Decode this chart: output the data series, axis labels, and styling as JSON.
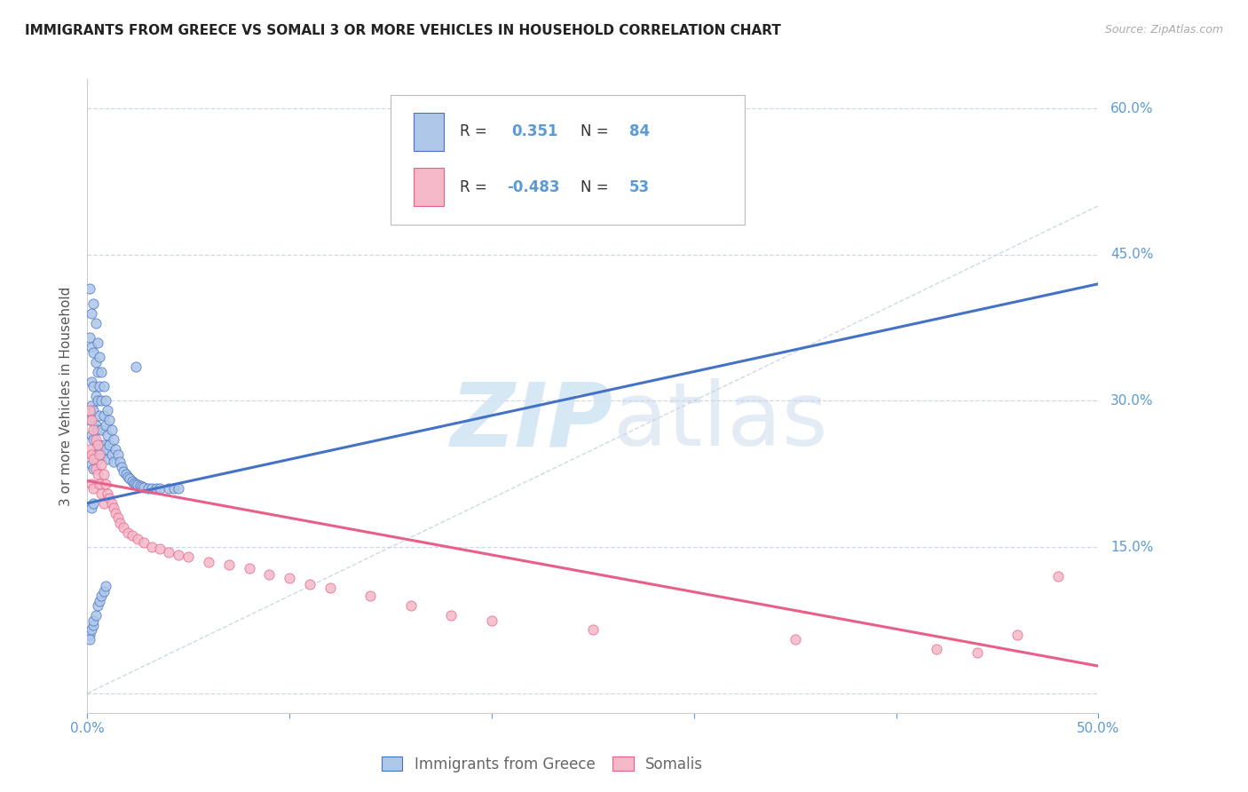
{
  "title": "IMMIGRANTS FROM GREECE VS SOMALI 3 OR MORE VEHICLES IN HOUSEHOLD CORRELATION CHART",
  "source": "Source: ZipAtlas.com",
  "ylabel": "3 or more Vehicles in Household",
  "xmin": 0.0,
  "xmax": 0.5,
  "ymin": -0.02,
  "ymax": 0.63,
  "color_greece": "#aec6e8",
  "color_somali": "#f4b8c8",
  "color_greece_line": "#4472c4",
  "color_somali_line": "#e8608a",
  "color_diag_line": "#c0d0e0",
  "background_color": "#ffffff",
  "grid_color": "#d0d8e8",
  "axis_color": "#5b9bd5",
  "greece_line_y_start": 0.195,
  "greece_line_y_end": 0.42,
  "somali_line_y_start": 0.218,
  "somali_line_y_end": 0.028,
  "greece_x": [
    0.001,
    0.001,
    0.001,
    0.002,
    0.002,
    0.002,
    0.002,
    0.002,
    0.002,
    0.002,
    0.003,
    0.003,
    0.003,
    0.003,
    0.003,
    0.003,
    0.003,
    0.004,
    0.004,
    0.004,
    0.004,
    0.004,
    0.005,
    0.005,
    0.005,
    0.005,
    0.005,
    0.006,
    0.006,
    0.006,
    0.006,
    0.007,
    0.007,
    0.007,
    0.007,
    0.008,
    0.008,
    0.008,
    0.009,
    0.009,
    0.009,
    0.01,
    0.01,
    0.01,
    0.011,
    0.011,
    0.012,
    0.012,
    0.013,
    0.013,
    0.014,
    0.015,
    0.016,
    0.017,
    0.018,
    0.019,
    0.02,
    0.021,
    0.022,
    0.023,
    0.024,
    0.025,
    0.026,
    0.027,
    0.028,
    0.03,
    0.032,
    0.034,
    0.036,
    0.04,
    0.043,
    0.045,
    0.001,
    0.001,
    0.002,
    0.003,
    0.003,
    0.004,
    0.005,
    0.006,
    0.007,
    0.008,
    0.009,
    0.024
  ],
  "greece_y": [
    0.415,
    0.365,
    0.28,
    0.39,
    0.355,
    0.32,
    0.295,
    0.265,
    0.235,
    0.19,
    0.4,
    0.35,
    0.315,
    0.29,
    0.26,
    0.23,
    0.195,
    0.38,
    0.34,
    0.305,
    0.275,
    0.245,
    0.36,
    0.33,
    0.3,
    0.27,
    0.24,
    0.345,
    0.315,
    0.285,
    0.255,
    0.33,
    0.3,
    0.27,
    0.245,
    0.315,
    0.285,
    0.255,
    0.3,
    0.275,
    0.25,
    0.29,
    0.265,
    0.24,
    0.28,
    0.255,
    0.27,
    0.245,
    0.26,
    0.238,
    0.25,
    0.245,
    0.238,
    0.232,
    0.228,
    0.225,
    0.222,
    0.22,
    0.218,
    0.216,
    0.215,
    0.214,
    0.213,
    0.212,
    0.211,
    0.21,
    0.21,
    0.21,
    0.21,
    0.21,
    0.21,
    0.21,
    0.06,
    0.055,
    0.065,
    0.07,
    0.075,
    0.08,
    0.09,
    0.095,
    0.1,
    0.105,
    0.11,
    0.335
  ],
  "somali_x": [
    0.001,
    0.001,
    0.002,
    0.002,
    0.002,
    0.003,
    0.003,
    0.003,
    0.004,
    0.004,
    0.005,
    0.005,
    0.006,
    0.006,
    0.007,
    0.007,
    0.008,
    0.008,
    0.009,
    0.01,
    0.011,
    0.012,
    0.013,
    0.014,
    0.015,
    0.016,
    0.018,
    0.02,
    0.022,
    0.025,
    0.028,
    0.032,
    0.036,
    0.04,
    0.045,
    0.05,
    0.06,
    0.07,
    0.08,
    0.09,
    0.1,
    0.11,
    0.12,
    0.14,
    0.16,
    0.18,
    0.2,
    0.25,
    0.35,
    0.42,
    0.44,
    0.46,
    0.48
  ],
  "somali_y": [
    0.29,
    0.25,
    0.28,
    0.245,
    0.215,
    0.27,
    0.24,
    0.21,
    0.26,
    0.23,
    0.255,
    0.225,
    0.245,
    0.215,
    0.235,
    0.205,
    0.225,
    0.195,
    0.215,
    0.205,
    0.2,
    0.195,
    0.19,
    0.185,
    0.18,
    0.175,
    0.17,
    0.165,
    0.162,
    0.158,
    0.155,
    0.15,
    0.148,
    0.145,
    0.142,
    0.14,
    0.135,
    0.132,
    0.128,
    0.122,
    0.118,
    0.112,
    0.108,
    0.1,
    0.09,
    0.08,
    0.075,
    0.065,
    0.055,
    0.045,
    0.042,
    0.06,
    0.12
  ]
}
